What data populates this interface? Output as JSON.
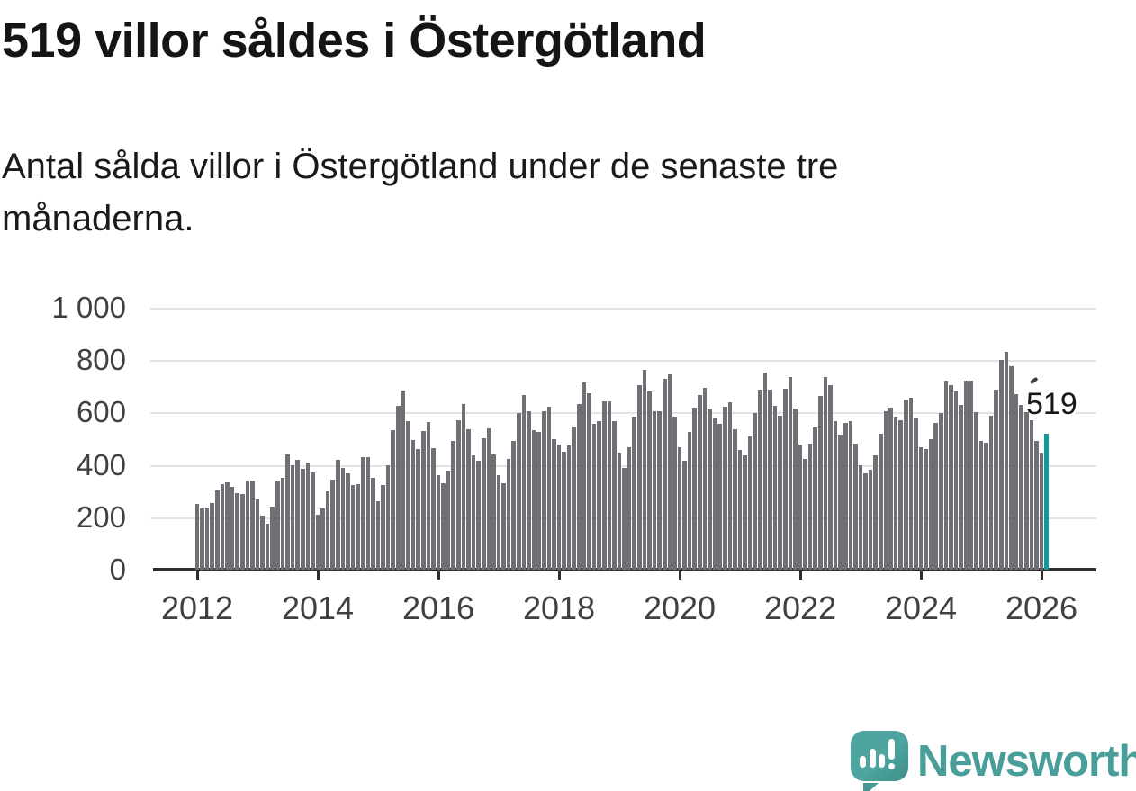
{
  "title": "519 villor såldes i Östergötland",
  "subtitle_lines": [
    "Antal sålda villor i Östergötland under de senaste tre",
    "månaderna."
  ],
  "annotation": {
    "label": "519"
  },
  "logo": {
    "text": "Newsworthy"
  },
  "colors": {
    "bar": "#6e7075",
    "highlight": "#12999b",
    "axis": "#2e2e2e",
    "gridline": "#e3e3e3",
    "text": "#181818",
    "logo_teal": "#4a9e99"
  },
  "chart_data": {
    "type": "bar",
    "title": "519 villor såldes i Östergötland",
    "subtitle": "Antal sålda villor i Östergötland under de senaste tre månaderna.",
    "x_start": "2012-01",
    "frequency": "monthly",
    "xlabel": "",
    "ylabel": "",
    "ylim": [
      0,
      1000
    ],
    "grid": true,
    "y_ticks": [
      0,
      200,
      400,
      600,
      800,
      1000
    ],
    "y_tick_labels": [
      "0",
      "200",
      "400",
      "600",
      "800",
      "1 000"
    ],
    "x_tick_labels": [
      "2012",
      "2014",
      "2016",
      "2018",
      "2020",
      "2022",
      "2024",
      "2026"
    ],
    "values": [
      250,
      233,
      238,
      254,
      302,
      325,
      335,
      315,
      291,
      287,
      340,
      340,
      267,
      205,
      175,
      242,
      336,
      350,
      440,
      400,
      420,
      385,
      410,
      370,
      210,
      233,
      300,
      342,
      420,
      390,
      368,
      322,
      328,
      430,
      430,
      350,
      260,
      322,
      397,
      534,
      625,
      685,
      568,
      494,
      459,
      528,
      562,
      465,
      362,
      331,
      377,
      491,
      571,
      634,
      535,
      437,
      417,
      503,
      540,
      440,
      360,
      329,
      423,
      491,
      597,
      666,
      606,
      531,
      526,
      606,
      623,
      497,
      478,
      451,
      474,
      546,
      631,
      714,
      674,
      558,
      566,
      642,
      642,
      566,
      446,
      389,
      469,
      585,
      703,
      764,
      680,
      604,
      606,
      729,
      745,
      583,
      469,
      417,
      526,
      617,
      665,
      695,
      611,
      581,
      558,
      623,
      640,
      537,
      457,
      437,
      509,
      597,
      689,
      754,
      686,
      626,
      589,
      691,
      737,
      615,
      477,
      421,
      482,
      543,
      663,
      735,
      703,
      568,
      514,
      560,
      566,
      482,
      397,
      366,
      383,
      437,
      520,
      606,
      620,
      585,
      572,
      651,
      657,
      580,
      469,
      459,
      497,
      560,
      597,
      723,
      703,
      680,
      629,
      720,
      720,
      600,
      491,
      483,
      589,
      686,
      800,
      830,
      775,
      670,
      630,
      600,
      570,
      492,
      447,
      519
    ],
    "highlight": {
      "index": 169,
      "value": 519,
      "label": "519",
      "color": "#12999b"
    },
    "bar_color": "#6e7075",
    "legend": null
  }
}
